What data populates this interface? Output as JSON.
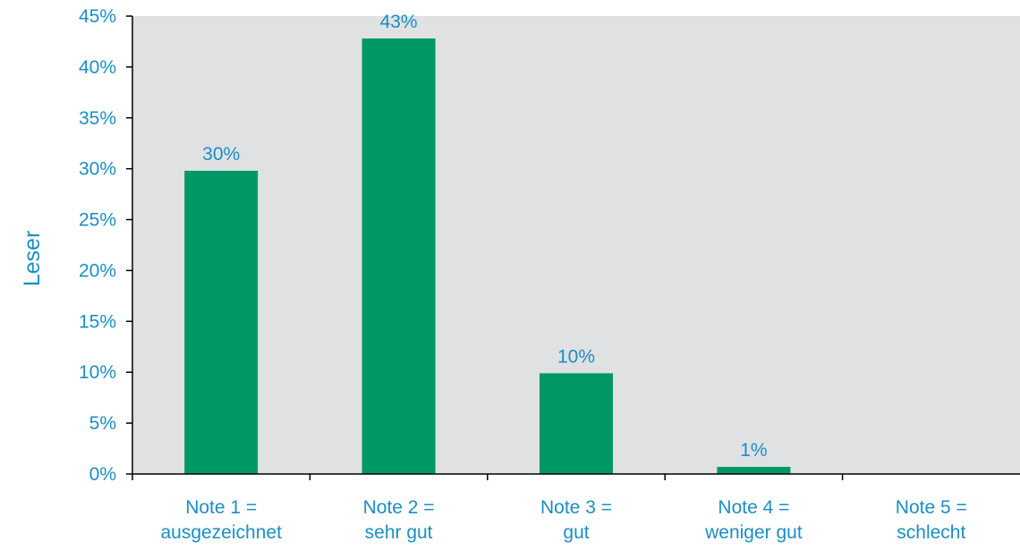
{
  "chart_data": {
    "type": "bar",
    "ylabel": "Leser",
    "xlabel": "",
    "categories": [
      [
        "Note 1 =",
        "ausgezeichnet"
      ],
      [
        "Note 2 =",
        "sehr gut"
      ],
      [
        "Note 3 =",
        "gut"
      ],
      [
        "Note 4 =",
        "weniger gut"
      ],
      [
        "Note 5 =",
        "schlecht"
      ]
    ],
    "values": [
      29.8,
      42.8,
      9.9,
      0.7,
      0
    ],
    "data_labels": [
      "30%",
      "43%",
      "10%",
      "1%",
      ""
    ],
    "ylim": [
      0,
      45
    ],
    "yticks": [
      0,
      5,
      10,
      15,
      20,
      25,
      30,
      35,
      40,
      45
    ],
    "ytick_labels": [
      "0%",
      "5%",
      "10%",
      "15%",
      "20%",
      "25%",
      "30%",
      "35%",
      "40%",
      "45%"
    ],
    "grid": false,
    "legend": "none",
    "colors": {
      "bar": "#009966",
      "plot_background": "#e0e1e3",
      "text": "#1a8fc4",
      "axis": "#000000"
    }
  }
}
